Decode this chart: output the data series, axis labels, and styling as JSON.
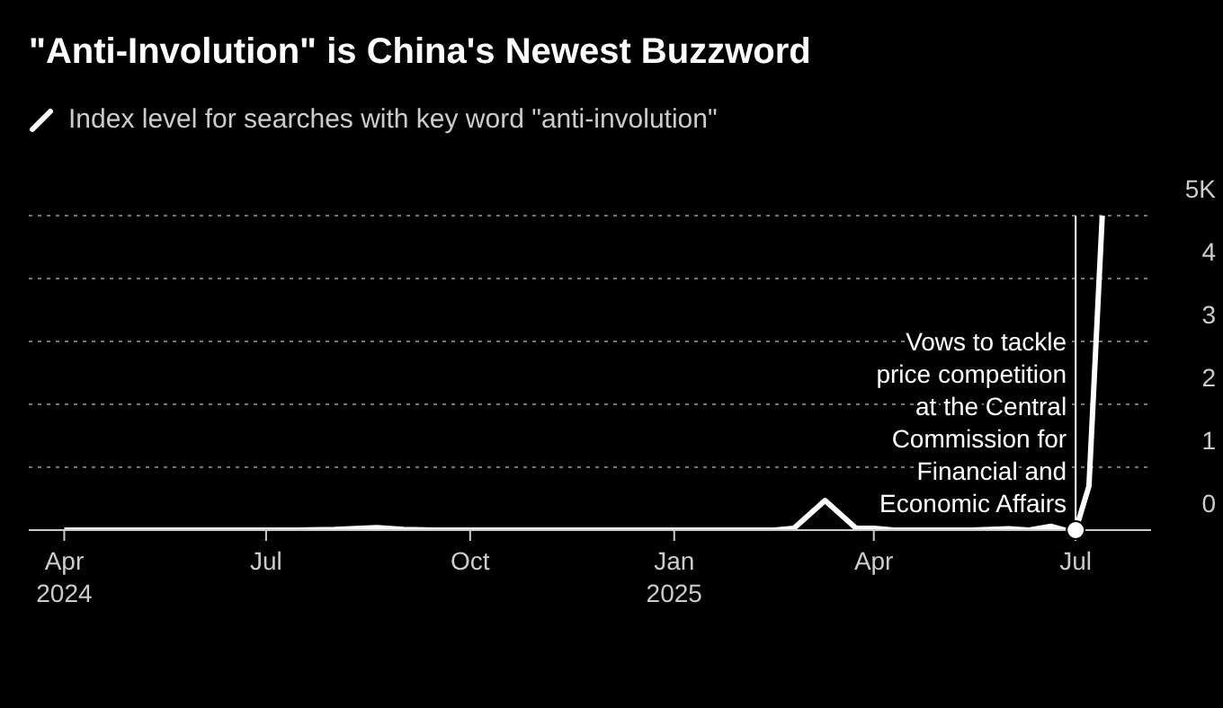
{
  "chart_data": {
    "type": "line",
    "title": "\"Anti-Involution\" is China's Newest Buzzword",
    "x": [
      "2024-04-01",
      "2024-05-01",
      "2024-06-01",
      "2024-07-15",
      "2024-08-01",
      "2024-08-20",
      "2024-09-01",
      "2024-09-15",
      "2024-11-01",
      "2025-01-01",
      "2025-02-15",
      "2025-02-24",
      "2025-03-10",
      "2025-03-24",
      "2025-04-01",
      "2025-04-10",
      "2025-05-15",
      "2025-06-01",
      "2025-06-10",
      "2025-06-20",
      "2025-06-26",
      "2025-07-01",
      "2025-07-07",
      "2025-07-13"
    ],
    "series": [
      {
        "name": "Index level for searches with key word \"anti-involution\"",
        "color": "#ffffff",
        "values": [
          0,
          0,
          0,
          0,
          0.01,
          0.04,
          0.01,
          0,
          0,
          0,
          0,
          0.03,
          0.47,
          0.03,
          0.03,
          0,
          0,
          0.02,
          0,
          0.06,
          0,
          0,
          0.7,
          5
        ]
      }
    ],
    "xlim": [
      "2024-03-16",
      "2025-08-04"
    ],
    "xticks": [
      {
        "value": "2024-04-01",
        "label": "Apr\n2024"
      },
      {
        "value": "2024-07-01",
        "label": "Jul"
      },
      {
        "value": "2024-10-01",
        "label": "Oct"
      },
      {
        "value": "2025-01-01",
        "label": "Jan\n2025"
      },
      {
        "value": "2025-04-01",
        "label": "Apr"
      },
      {
        "value": "2025-07-01",
        "label": "Jul"
      }
    ],
    "ylim": [
      0,
      5
    ],
    "yticks": [
      0,
      1,
      2,
      3,
      4,
      {
        "value": 5,
        "label": "5K"
      }
    ],
    "ref_lines": [
      {
        "axis": "x",
        "value": "2025-07-01",
        "label": "Vows to tackle\nprice competition\nat the Central\nCommission for\nFinancial and\nEconomic Affairs",
        "color": "#ffffff"
      }
    ],
    "grid": "y",
    "legend": "top left",
    "marker": "none",
    "line_style": "solid"
  }
}
